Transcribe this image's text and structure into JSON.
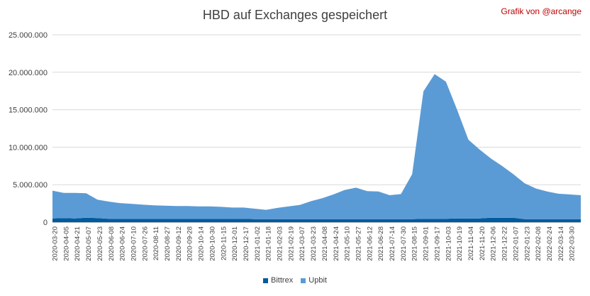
{
  "chart_data": {
    "type": "area",
    "stacked": true,
    "title": "HBD auf Exchanges gespeichert",
    "credit": "Grafik von @arcange",
    "xlabel": "",
    "ylabel": "",
    "ylim": [
      0,
      25000000
    ],
    "yticks": [
      "0",
      "5.000.000",
      "10.000.000",
      "15.000.000",
      "20.000.000",
      "25.000.000"
    ],
    "ytick_values": [
      0,
      5000000,
      10000000,
      15000000,
      20000000,
      25000000
    ],
    "grid": true,
    "legend": "bottom",
    "x": [
      "2020-03-20",
      "2020-04-05",
      "2020-04-21",
      "2020-05-07",
      "2020-05-23",
      "2020-06-08",
      "2020-06-24",
      "2020-07-10",
      "2020-07-26",
      "2020-08-11",
      "2020-08-27",
      "2020-09-12",
      "2020-09-28",
      "2020-10-14",
      "2020-10-30",
      "2020-11-15",
      "2020-12-01",
      "2020-12-17",
      "2021-01-02",
      "2021-01-18",
      "2021-02-03",
      "2021-02-19",
      "2021-03-07",
      "2021-03-23",
      "2021-04-08",
      "2021-04-24",
      "2021-05-10",
      "2021-05-26",
      "2021-06-11",
      "2021-06-27",
      "2021-07-13",
      "2021-07-29",
      "2021-08-14",
      "2021-08-30",
      "2021-09-15",
      "2021-10-01",
      "2021-10-17",
      "2021-11-02",
      "2021-11-18",
      "2021-12-04",
      "2021-12-20",
      "2022-01-05",
      "2022-01-21",
      "2022-02-06",
      "2022-02-22",
      "2022-03-10",
      "2022-03-26",
      "2022-04-11"
    ],
    "x_tick_labels": [
      "2020-03-20",
      "2020-04-05",
      "2020-04-21",
      "2020-05-07",
      "2020-05-23",
      "2020-06-08",
      "2020-06-24",
      "2020-07-10",
      "2020-07-26",
      "2020-08-11",
      "2020-08-27",
      "2020-09-12",
      "2020-09-28",
      "2020-10-14",
      "2020-10-30",
      "2020-11-15",
      "2020-12-01",
      "2020-12-17",
      "2021-01-02",
      "2021-01-18",
      "2021-02-03",
      "2021-02-19",
      "2021-03-07",
      "2021-03-23",
      "2021-04-08",
      "2021-04-24",
      "2021-05-10",
      "2021-05-27",
      "2021-06-12",
      "2021-06-28",
      "2021-07-14",
      "2021-07-30",
      "2021-08-15",
      "2021-09-01",
      "2021-09-17",
      "2021-10-03",
      "2021-10-19",
      "2021-11-04",
      "2021-11-20",
      "2021-12-06",
      "2021-12-22",
      "2022-01-07",
      "2022-01-23",
      "2022-02-08",
      "2022-02-24",
      "2022-03-14",
      "2022-03-30"
    ],
    "series": [
      {
        "name": "Bittrex",
        "color": "#005a9e",
        "values": [
          500000,
          550000,
          500000,
          600000,
          550000,
          450000,
          450000,
          450000,
          450000,
          450000,
          450000,
          450000,
          450000,
          450000,
          450000,
          450000,
          450000,
          450000,
          400000,
          400000,
          400000,
          400000,
          400000,
          400000,
          400000,
          400000,
          400000,
          400000,
          400000,
          400000,
          400000,
          400000,
          400000,
          450000,
          450000,
          450000,
          500000,
          500000,
          500000,
          600000,
          600000,
          600000,
          400000,
          400000,
          400000,
          400000,
          400000,
          400000
        ]
      },
      {
        "name": "Upbit",
        "color": "#5b9bd5",
        "values": [
          3700000,
          3350000,
          3400000,
          3250000,
          2450000,
          2300000,
          2100000,
          2000000,
          1900000,
          1800000,
          1750000,
          1700000,
          1700000,
          1650000,
          1650000,
          1600000,
          1500000,
          1500000,
          1400000,
          1250000,
          1500000,
          1700000,
          1900000,
          2400000,
          2800000,
          3300000,
          3900000,
          4200000,
          3750000,
          3700000,
          3200000,
          3350000,
          6000000,
          17000000,
          19300000,
          18300000,
          14500000,
          10500000,
          9200000,
          7900000,
          6900000,
          5800000,
          4800000,
          4100000,
          3700000,
          3400000,
          3300000,
          3200000
        ]
      }
    ]
  }
}
